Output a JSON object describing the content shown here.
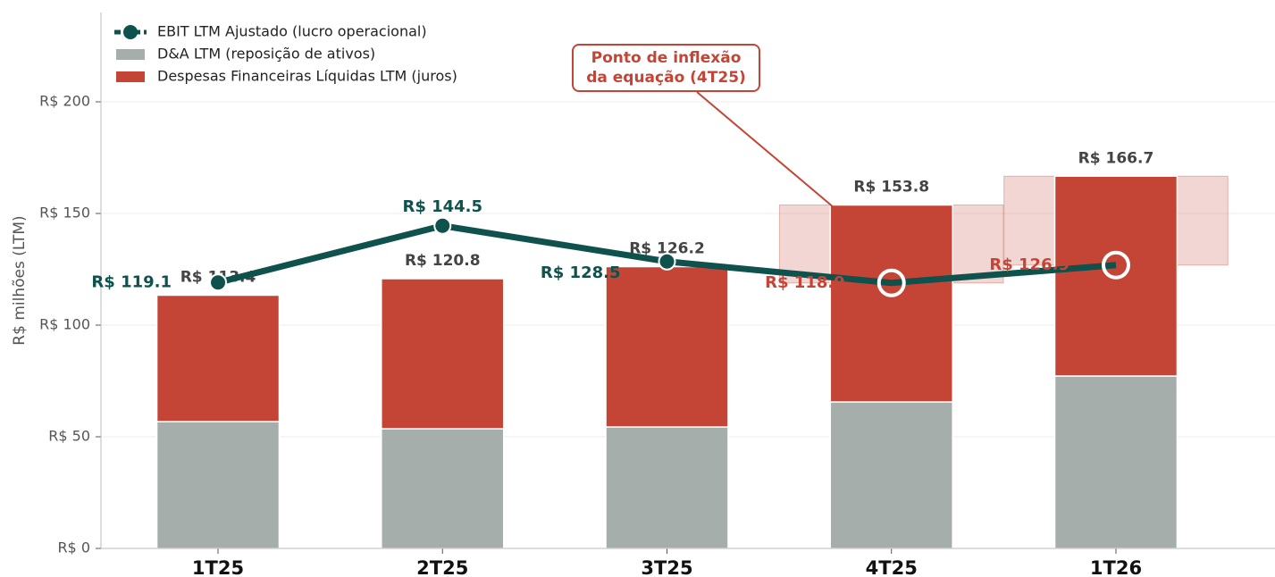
{
  "chart_data": {
    "type": "stacked_bar_line",
    "y_axis_label": "R$ milhões (LTM)",
    "categories": [
      "1T25",
      "2T25",
      "3T25",
      "4T25",
      "1T26"
    ],
    "series": [
      {
        "name": "D&A LTM (reposição de ativos)",
        "color": "#a6aeac",
        "values": [
          56.8,
          53.6,
          54.4,
          65.6,
          77.2
        ]
      },
      {
        "name": "Despesas Financeiras Líquidas LTM (juros)",
        "color": "#c44536",
        "values": [
          56.6,
          67.2,
          71.8,
          88.2,
          89.5
        ]
      },
      {
        "name": "EBIT LTM Ajustado (lucro operacional)",
        "type": "line",
        "color": "#0f514c",
        "values": [
          119.1,
          144.5,
          128.5,
          118.9,
          126.9
        ],
        "value_labels": [
          "R$ 119.1",
          "R$ 144.5",
          "R$ 128.5",
          "R$ 118.9",
          "R$ 126.9"
        ]
      }
    ],
    "total_labels": [
      "R$ 113.4",
      "R$ 120.8",
      "R$ 126.2",
      "R$ 153.8",
      "R$ 166.7"
    ],
    "highlighted": [
      "4T25",
      "1T26"
    ],
    "annotation": {
      "text": [
        "Ponto de inflexão",
        "da equação (4T25)"
      ],
      "category": "4T25",
      "color": "#c44536"
    },
    "ylim": [
      0,
      240
    ],
    "yticks": [
      {
        "value": 0,
        "label": "R$ 0"
      },
      {
        "value": 50,
        "label": "R$ 50"
      },
      {
        "value": 100,
        "label": "R$ 100"
      },
      {
        "value": 150,
        "label": "R$ 150"
      },
      {
        "value": 200,
        "label": "R$ 200"
      }
    ],
    "grid": true,
    "legend": "upper left"
  }
}
